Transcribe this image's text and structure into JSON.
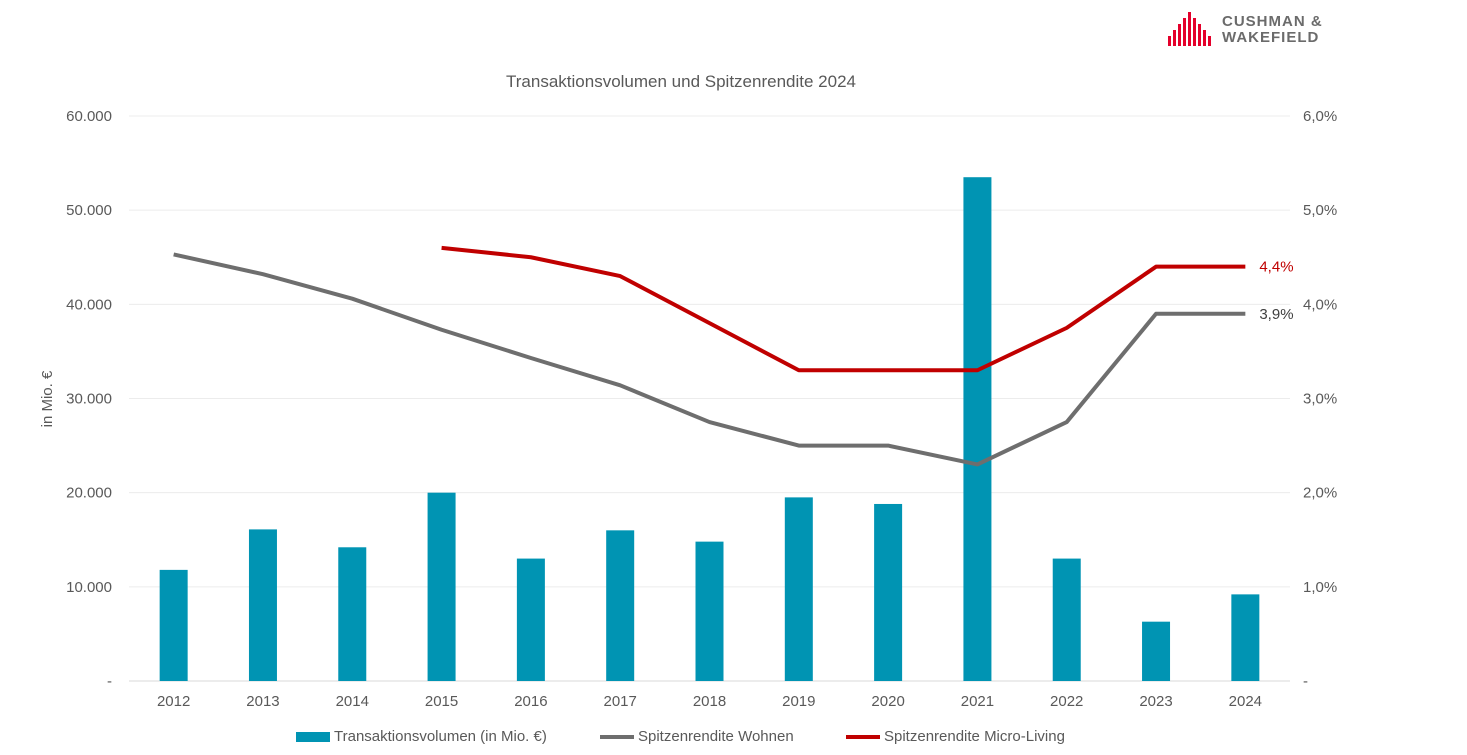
{
  "logo": {
    "line1": "CUSHMAN &",
    "line2": "WAKEFIELD"
  },
  "chart_data": {
    "type": "bar",
    "title": "Transaktionsvolumen und Spitzenrendite 2024",
    "ylabel": "in Mio. €",
    "categories": [
      "2012",
      "2013",
      "2014",
      "2015",
      "2016",
      "2017",
      "2018",
      "2019",
      "2020",
      "2021",
      "2022",
      "2023",
      "2024"
    ],
    "ylim": [
      0,
      60000
    ],
    "y2lim": [
      0,
      6.0
    ],
    "y_ticks": [
      "-",
      "10.000",
      "20.000",
      "30.000",
      "40.000",
      "50.000",
      "60.000"
    ],
    "y2_ticks": [
      "-",
      "1,0%",
      "2,0%",
      "3,0%",
      "4,0%",
      "5,0%",
      "6,0%"
    ],
    "grid": true,
    "legend_position": "bottom",
    "series": [
      {
        "name": "Transaktionsvolumen (in Mio. €)",
        "kind": "bar",
        "axis": "left",
        "color": "#0094b3",
        "values": [
          11800,
          16100,
          14200,
          20000,
          13000,
          16000,
          14800,
          19500,
          18800,
          53500,
          13000,
          6300,
          9200
        ]
      },
      {
        "name": "Spitzenrendite Wohnen",
        "kind": "line",
        "axis": "right",
        "color": "#6e6e6e",
        "values": [
          4.53,
          4.32,
          4.06,
          3.73,
          3.43,
          3.14,
          2.75,
          2.5,
          2.5,
          2.3,
          2.75,
          3.9,
          3.9
        ],
        "end_label": "3,9%"
      },
      {
        "name": "Spitzenrendite Micro-Living",
        "kind": "line",
        "axis": "right",
        "color": "#c00000",
        "values": [
          null,
          null,
          null,
          4.6,
          4.5,
          4.3,
          3.8,
          3.3,
          3.3,
          3.3,
          3.75,
          4.4,
          4.4
        ],
        "end_label": "4,4%"
      }
    ]
  }
}
